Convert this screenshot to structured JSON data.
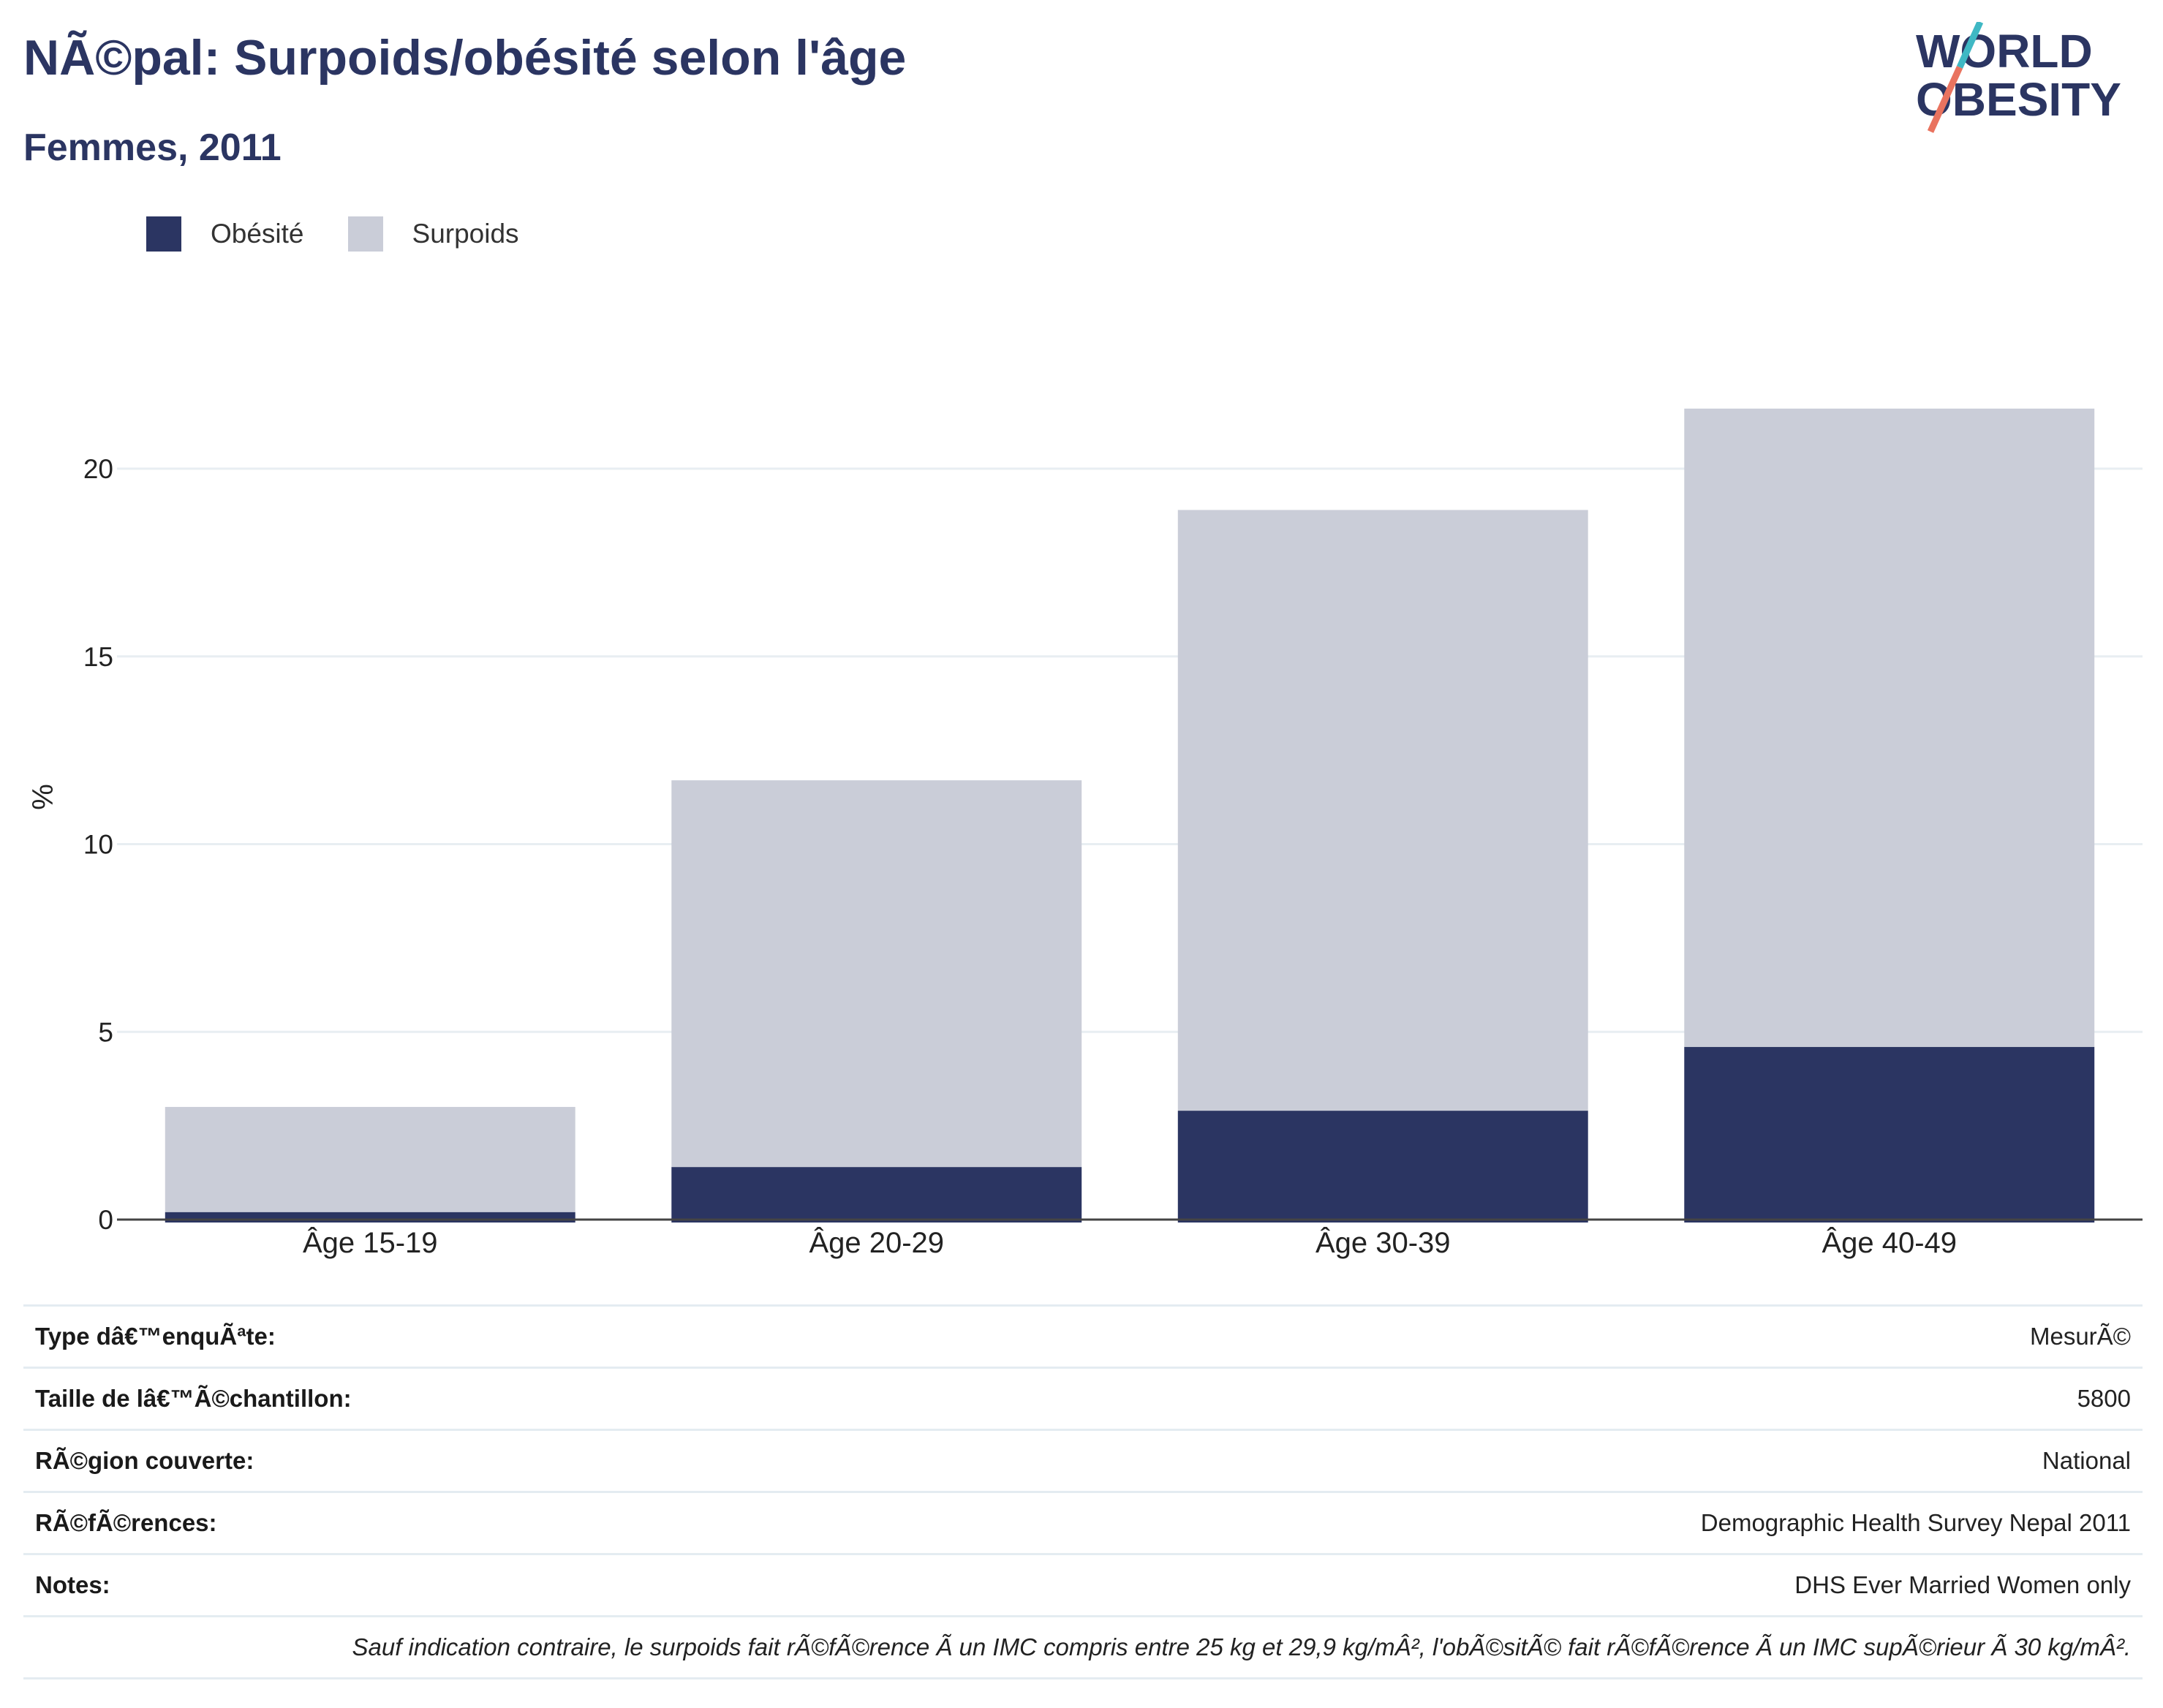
{
  "title": "NÃ©pal: Surpoids/obésité selon l'âge",
  "subtitle": "Femmes, 2011",
  "logo": {
    "line1": "WORLD",
    "line2": "OBESITY"
  },
  "colors": {
    "obesity": "#2b3562",
    "overweight": "#cacdd8",
    "title": "#2b3562",
    "grid": "#e8eef2",
    "logo_slash_top": "#3fb8c4",
    "logo_slash_bottom": "#e9735f"
  },
  "chart_data": {
    "type": "bar",
    "stacked": true,
    "categories": [
      "Âge 15-19",
      "Âge 20-29",
      "Âge 30-39",
      "Âge 40-49"
    ],
    "series": [
      {
        "name": "Obésité",
        "values": [
          0.2,
          1.4,
          2.9,
          4.6
        ]
      },
      {
        "name": "Surpoids",
        "values": [
          2.8,
          10.3,
          16.0,
          17.0
        ]
      }
    ],
    "ylabel": "%",
    "xlabel": "",
    "ylim": [
      0,
      22.5
    ],
    "yticks": [
      0,
      5,
      10,
      15,
      20
    ],
    "grid": true,
    "legend": "top-left"
  },
  "meta": {
    "rows": [
      {
        "key": "Type dâ€™enquÃªte:",
        "value": "MesurÃ©"
      },
      {
        "key": "Taille de lâ€™Ã©chantillon:",
        "value": "5800"
      },
      {
        "key": "RÃ©gion couverte:",
        "value": "National"
      },
      {
        "key": "RÃ©fÃ©rences:",
        "value": "Demographic Health Survey Nepal 2011"
      },
      {
        "key": "Notes:",
        "value": "DHS Ever Married Women only"
      }
    ],
    "footnote": "Sauf indication contraire, le surpoids fait rÃ©fÃ©rence Ã  un IMC compris entre 25 kg et 29,9 kg/mÂ², l'obÃ©sitÃ© fait rÃ©fÃ©rence Ã  un IMC supÃ©rieur Ã  30 kg/mÂ²."
  }
}
